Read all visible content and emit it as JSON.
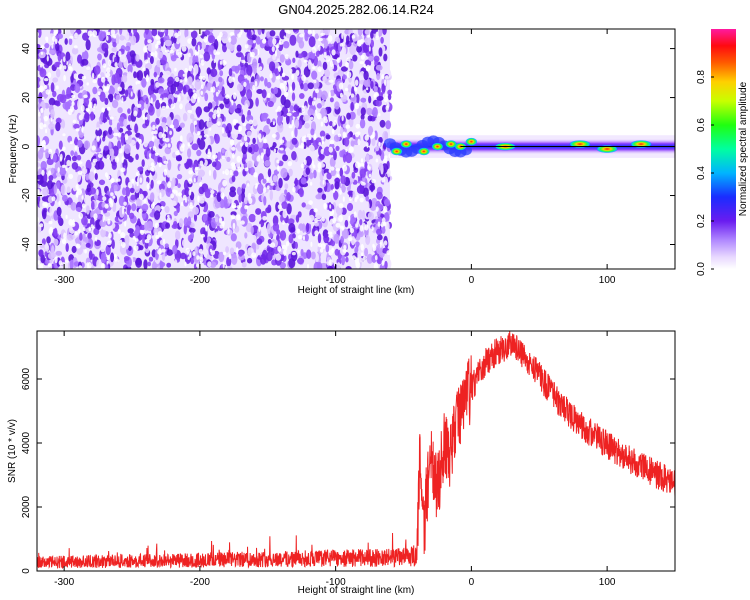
{
  "title": "GN04.2025.282.06.14.R24",
  "chart_data": [
    {
      "type": "heatmap",
      "name": "spectrogram",
      "xlabel": "Height of straight line (km)",
      "ylabel": "Frequency (Hz)",
      "xlim": [
        -320,
        150
      ],
      "ylim": [
        -50,
        48
      ],
      "xticks": [
        -300,
        -200,
        -100,
        0,
        100
      ],
      "yticks": [
        -40,
        -20,
        0,
        20,
        40
      ],
      "noise_region_km": [
        -320,
        -60
      ],
      "signal_line_hz": 0,
      "signal_band_hz": [
        -3,
        3
      ],
      "hotspots": [
        {
          "km": -55,
          "hz": -2
        },
        {
          "km": -48,
          "hz": 1
        },
        {
          "km": -35,
          "hz": -2
        },
        {
          "km": -25,
          "hz": 0
        },
        {
          "km": -15,
          "hz": 1
        },
        {
          "km": -8,
          "hz": 0
        },
        {
          "km": 0,
          "hz": 2
        },
        {
          "km": 25,
          "hz": 0
        },
        {
          "km": 80,
          "hz": 1
        },
        {
          "km": 100,
          "hz": -1
        },
        {
          "km": 125,
          "hz": 1
        }
      ],
      "colorbar": {
        "label": "Normalized spectral amplitude",
        "range": [
          0,
          1
        ],
        "ticks": [
          "0.0",
          "0.2",
          "0.4",
          "0.6",
          "0.8"
        ]
      }
    },
    {
      "type": "line",
      "name": "snr",
      "xlabel": "Height of straight line (km)",
      "ylabel": "SNR (10 * v/v)",
      "xlim": [
        -320,
        150
      ],
      "ylim": [
        0,
        7500
      ],
      "xticks": [
        -300,
        -200,
        -100,
        0,
        100
      ],
      "yticks": [
        0,
        2000,
        4000,
        6000
      ],
      "series": [
        {
          "name": "SNR",
          "color": "#ee2222",
          "x": [
            -320,
            -300,
            -250,
            -200,
            -150,
            -100,
            -60,
            -40,
            -38,
            -35,
            -30,
            -25,
            -20,
            -15,
            -10,
            -5,
            0,
            10,
            20,
            30,
            40,
            50,
            60,
            70,
            80,
            90,
            100,
            110,
            120,
            130,
            140,
            150
          ],
          "values": [
            280,
            300,
            330,
            360,
            390,
            420,
            440,
            470,
            3500,
            1300,
            3800,
            2500,
            4100,
            3600,
            4700,
            5400,
            5700,
            6500,
            6900,
            7100,
            6700,
            6100,
            5500,
            5000,
            4600,
            4250,
            3950,
            3650,
            3400,
            3150,
            2950,
            2700
          ]
        }
      ]
    }
  ]
}
